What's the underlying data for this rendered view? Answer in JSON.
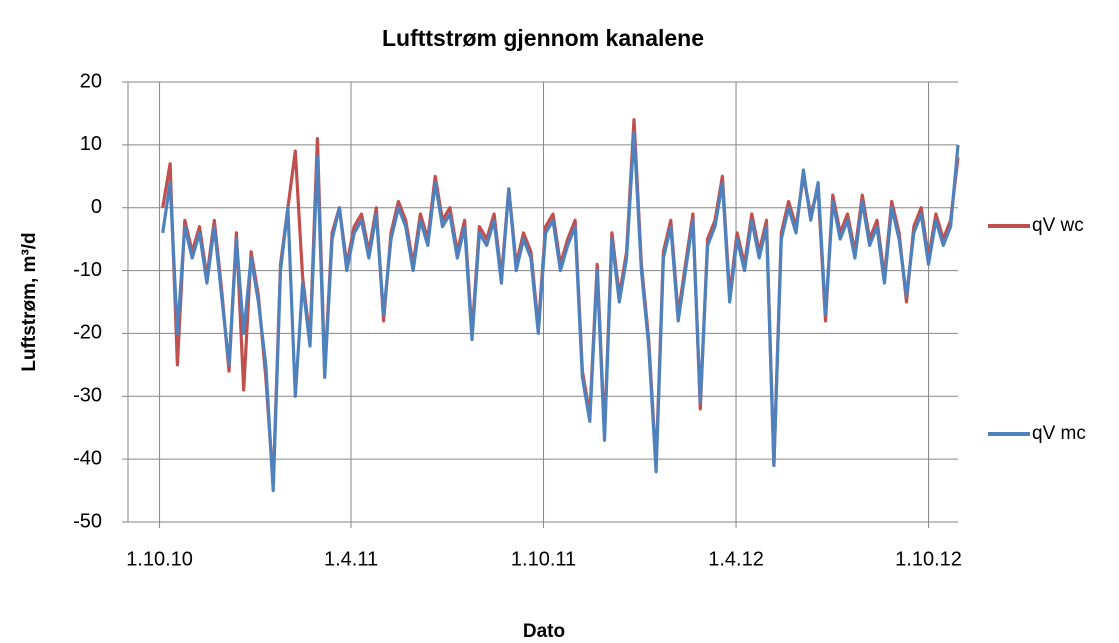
{
  "chart_data": {
    "type": "line",
    "title": "Lufttstrøm gjennom kanalene",
    "x_label": "Dato",
    "y_label": "Luftstrøm,  m³/d",
    "legend": "right",
    "grid": true,
    "xlim": [
      "2010-09-01",
      "2012-10-29"
    ],
    "xticks": [
      {
        "value": "2010-10-01",
        "label": "1.10.10"
      },
      {
        "value": "2011-04-01",
        "label": "1.4.11"
      },
      {
        "value": "2011-10-01",
        "label": "1.10.11"
      },
      {
        "value": "2012-04-01",
        "label": "1.4.12"
      },
      {
        "value": "2012-10-01",
        "label": "1.10.12"
      }
    ],
    "ylim": [
      -50,
      20
    ],
    "yticks": [
      -50,
      -40,
      -30,
      -20,
      -10,
      0,
      10,
      20
    ],
    "x": [
      "2010-10-04",
      "2010-10-11",
      "2010-10-18",
      "2010-10-25",
      "2010-11-01",
      "2010-11-08",
      "2010-11-15",
      "2010-11-22",
      "2010-11-29",
      "2010-12-06",
      "2010-12-13",
      "2010-12-20",
      "2010-12-27",
      "2011-01-03",
      "2011-01-10",
      "2011-01-17",
      "2011-01-24",
      "2011-01-31",
      "2011-02-07",
      "2011-02-14",
      "2011-02-21",
      "2011-02-28",
      "2011-03-07",
      "2011-03-14",
      "2011-03-21",
      "2011-03-28",
      "2011-04-04",
      "2011-04-11",
      "2011-04-18",
      "2011-04-25",
      "2011-05-02",
      "2011-05-09",
      "2011-05-16",
      "2011-05-23",
      "2011-05-30",
      "2011-06-06",
      "2011-06-13",
      "2011-06-20",
      "2011-06-27",
      "2011-07-04",
      "2011-07-11",
      "2011-07-18",
      "2011-07-25",
      "2011-08-01",
      "2011-08-08",
      "2011-08-15",
      "2011-08-22",
      "2011-08-29",
      "2011-09-05",
      "2011-09-12",
      "2011-09-19",
      "2011-09-26",
      "2011-10-03",
      "2011-10-10",
      "2011-10-17",
      "2011-10-24",
      "2011-10-31",
      "2011-11-07",
      "2011-11-14",
      "2011-11-21",
      "2011-11-28",
      "2011-12-05",
      "2011-12-12",
      "2011-12-19",
      "2011-12-26",
      "2012-01-02",
      "2012-01-09",
      "2012-01-16",
      "2012-01-23",
      "2012-01-30",
      "2012-02-06",
      "2012-02-13",
      "2012-02-20",
      "2012-02-27",
      "2012-03-05",
      "2012-03-12",
      "2012-03-19",
      "2012-03-26",
      "2012-04-02",
      "2012-04-09",
      "2012-04-16",
      "2012-04-23",
      "2012-04-30",
      "2012-05-07",
      "2012-05-14",
      "2012-05-21",
      "2012-05-28",
      "2012-06-04",
      "2012-06-11",
      "2012-06-18",
      "2012-06-25",
      "2012-07-02",
      "2012-07-09",
      "2012-07-16",
      "2012-07-23",
      "2012-07-30",
      "2012-08-06",
      "2012-08-13",
      "2012-08-20",
      "2012-08-27",
      "2012-09-03",
      "2012-09-10",
      "2012-09-17",
      "2012-09-24",
      "2012-10-01",
      "2012-10-08",
      "2012-10-15",
      "2012-10-22",
      "2012-10-29"
    ],
    "series": [
      {
        "name": "qV wc",
        "color": "#c0504d",
        "values": [
          0,
          7,
          -25,
          -2,
          -7,
          -3,
          -11,
          -2,
          -13,
          -26,
          -4,
          -29,
          -7,
          -14,
          -27,
          -44,
          -9,
          0,
          9,
          -11,
          -21,
          11,
          -26,
          -4,
          0,
          -9,
          -3,
          -1,
          -7,
          0,
          -18,
          -4,
          1,
          -2,
          -9,
          -1,
          -5,
          5,
          -2,
          0,
          -7,
          -2,
          -20,
          -3,
          -5,
          -1,
          -11,
          3,
          -9,
          -4,
          -7,
          -19,
          -3,
          -1,
          -9,
          -5,
          -2,
          -26,
          -33,
          -9,
          -36,
          -4,
          -14,
          -7,
          14,
          -9,
          -21,
          -41,
          -7,
          -2,
          -17,
          -9,
          -1,
          -32,
          -5,
          -2,
          5,
          -14,
          -4,
          -9,
          -1,
          -7,
          -2,
          -41,
          -4,
          1,
          -3,
          5,
          -1,
          3,
          -18,
          2,
          -4,
          -1,
          -7,
          2,
          -5,
          -2,
          -11,
          1,
          -4,
          -15,
          -3,
          0,
          -8,
          -1,
          -5,
          -2,
          8
        ]
      },
      {
        "name": "qV mc",
        "color": "#4f81bd",
        "values": [
          -4,
          4,
          -20,
          -3,
          -8,
          -4,
          -12,
          -3,
          -14,
          -25,
          -5,
          -20,
          -8,
          -15,
          -25,
          -45,
          -10,
          0,
          -30,
          -12,
          -22,
          8,
          -27,
          -5,
          0,
          -10,
          -4,
          -2,
          -8,
          -1,
          -17,
          -5,
          0,
          -3,
          -10,
          -2,
          -6,
          4,
          -3,
          -1,
          -8,
          -3,
          -21,
          -4,
          -6,
          -2,
          -12,
          3,
          -10,
          -5,
          -8,
          -20,
          -4,
          -2,
          -10,
          -6,
          -3,
          -27,
          -34,
          -10,
          -37,
          -5,
          -15,
          -8,
          12,
          -10,
          -22,
          -42,
          -8,
          -3,
          -18,
          -10,
          -2,
          -31,
          -6,
          -3,
          4,
          -15,
          -5,
          -10,
          -2,
          -8,
          -3,
          -41,
          -5,
          0,
          -4,
          6,
          -2,
          4,
          -17,
          1,
          -5,
          -2,
          -8,
          1,
          -6,
          -3,
          -12,
          0,
          -5,
          -14,
          -4,
          -1,
          -9,
          -2,
          -6,
          -3,
          10
        ]
      }
    ]
  }
}
